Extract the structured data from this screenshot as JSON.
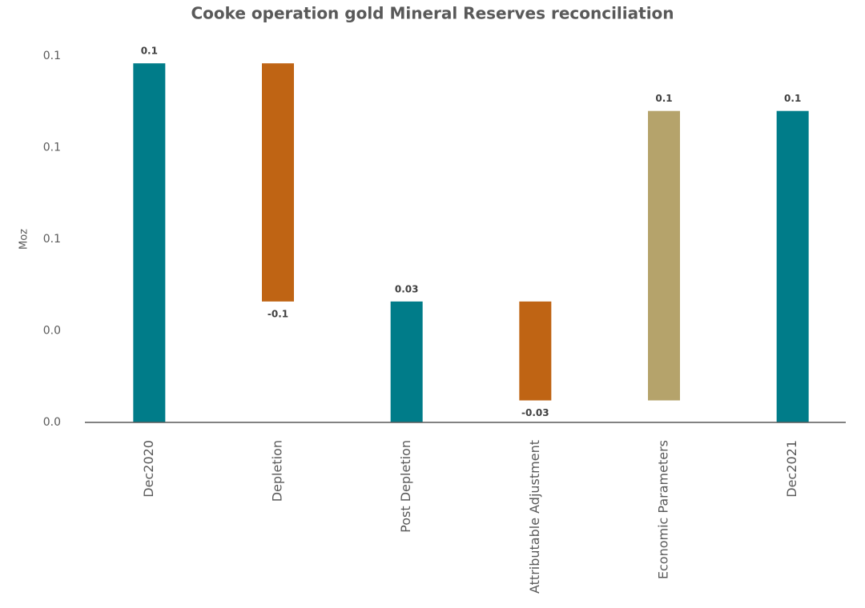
{
  "chart_data": {
    "type": "waterfall",
    "title": "Cooke operation gold Mineral Reserves reconciliation",
    "y_label": "Moz",
    "categories": [
      "Dec2020",
      "Depletion",
      "Post Depletion",
      "Attributable Adjustment",
      "Economic Parameters",
      "Dec2021"
    ],
    "measure": [
      "absolute",
      "relative",
      "absolute",
      "relative",
      "relative",
      "absolute"
    ],
    "values": [
      0.098,
      -0.065,
      0.033,
      -0.027,
      0.079,
      0.085
    ],
    "value_labels": [
      "0.1",
      "-0.1",
      "0.03",
      "-0.03",
      "0.1",
      "0.1"
    ],
    "colors": [
      "#007c89",
      "#bf6414",
      "#007c89",
      "#bf6414",
      "#b5a36b",
      "#007c89"
    ],
    "ylim": [
      0,
      0.1
    ],
    "yticks": [
      {
        "value": 0,
        "label": "0.0"
      },
      {
        "value": 0.025,
        "label": "0.0"
      },
      {
        "value": 0.05,
        "label": "0.1"
      },
      {
        "value": 0.075,
        "label": "0.1"
      },
      {
        "value": 0.1,
        "label": "0.1"
      }
    ],
    "grid": false
  }
}
